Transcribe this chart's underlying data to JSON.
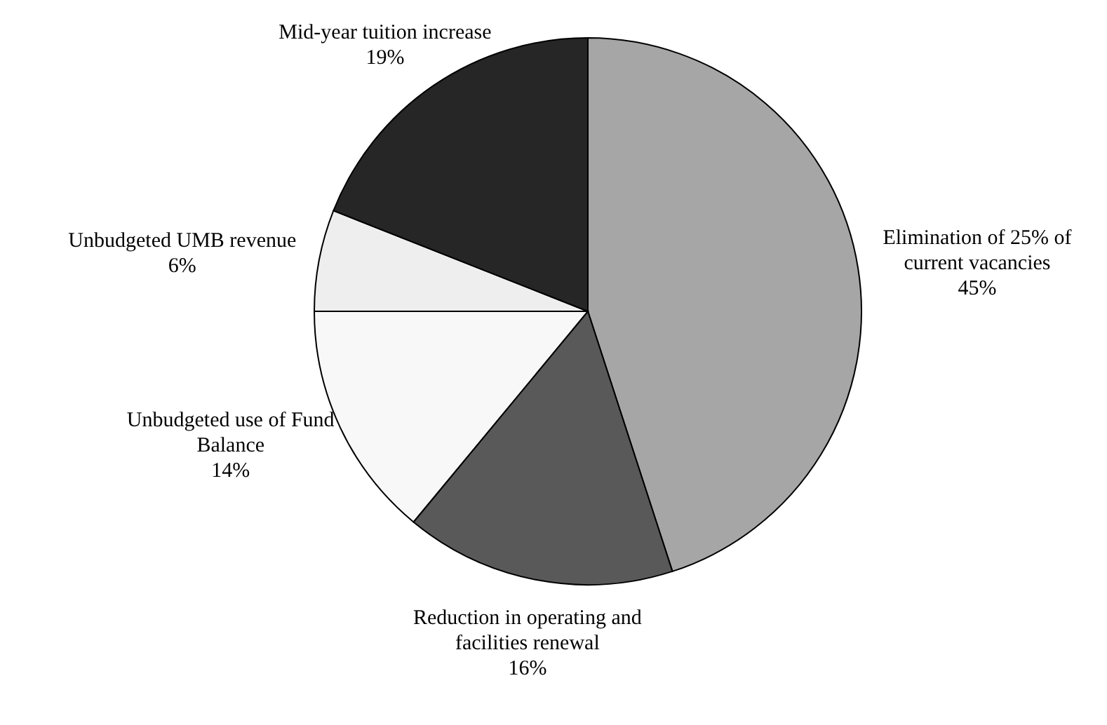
{
  "chart_data": {
    "type": "pie",
    "categories": [
      "Elimination of 25% of current vacancies",
      "Reduction in operating and facilities renewal",
      "Unbudgeted use of Fund Balance",
      "Unbudgeted UMB revenue",
      "Mid-year tuition increase"
    ],
    "values": [
      45,
      16,
      14,
      6,
      19
    ],
    "colors": [
      "#a6a6a6",
      "#595959",
      "#f8f8f8",
      "#eeeeee",
      "#262626"
    ],
    "value_labels": [
      "45%",
      "16%",
      "14%",
      "6%",
      "19%"
    ]
  }
}
